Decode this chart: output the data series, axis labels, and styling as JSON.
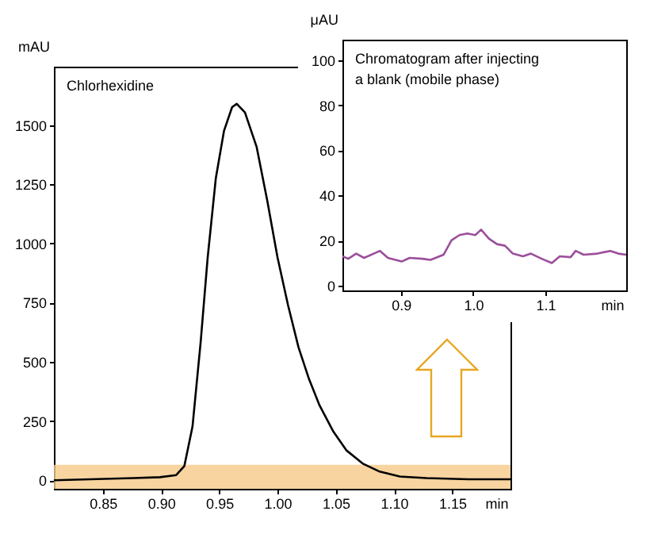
{
  "chart_data": [
    {
      "type": "line",
      "title": "Chlorhexidine",
      "xlabel": "min",
      "ylabel": "mAU",
      "xlim": [
        0.808,
        1.2
      ],
      "ylim": [
        -36,
        1747
      ],
      "xticks": [
        0.85,
        {
          "value": 0.9,
          "label": "0.90"
        },
        0.95,
        {
          "value": 1,
          "label": "1.00"
        },
        1.05,
        {
          "value": 1.1,
          "label": "1.10"
        },
        1.15
      ],
      "yticks": [
        0,
        250,
        500,
        750,
        1000,
        1250,
        1500
      ],
      "bands": [
        {
          "axis": "y",
          "from": -36,
          "to": 65,
          "color": "#f6c98a"
        }
      ],
      "series": [
        {
          "color": "#000000",
          "x": [
            0.808,
            0.876,
            0.899,
            0.913,
            0.92,
            0.927,
            0.934,
            0.94,
            0.947,
            0.954,
            0.961,
            0.965,
            0.972,
            0.982,
            0.991,
            1.0,
            1.009,
            1.018,
            1.027,
            1.036,
            1.048,
            1.059,
            1.073,
            1.087,
            1.105,
            1.128,
            1.164,
            1.2
          ],
          "values": [
            0,
            9,
            13,
            22,
            60,
            227,
            584,
            940,
            1275,
            1475,
            1576,
            1590,
            1554,
            1409,
            1186,
            941,
            740,
            562,
            428,
            317,
            205,
            127,
            71,
            38,
            16,
            9,
            4,
            4
          ]
        }
      ]
    },
    {
      "type": "line",
      "title": "Chromatogram after injecting a blank (mobile phase)",
      "xlabel": "min",
      "ylabel": "μAU",
      "xlim": [
        0.819,
        1.212
      ],
      "ylim": [
        -2,
        109
      ],
      "xticks": [
        0.9,
        {
          "value": 1,
          "label": "1.0"
        },
        1.1
      ],
      "yticks": [
        0,
        20,
        40,
        60,
        80,
        100
      ],
      "series": [
        {
          "color": "#9b4f9b",
          "x": [
            0.819,
            0.827,
            0.838,
            0.849,
            0.871,
            0.882,
            0.901,
            0.912,
            0.93,
            0.941,
            0.959,
            0.97,
            0.981,
            0.992,
            1.003,
            1.011,
            1.022,
            1.033,
            1.044,
            1.055,
            1.069,
            1.08,
            1.095,
            1.109,
            1.12,
            1.135,
            1.142,
            1.153,
            1.172,
            1.19,
            1.201,
            1.212
          ],
          "values": [
            13.1,
            12,
            14.3,
            12.4,
            15.5,
            12.4,
            10.8,
            12.4,
            12,
            11.5,
            13.8,
            20.2,
            22.5,
            23.2,
            22.5,
            24.9,
            20.9,
            18.5,
            17.8,
            14.3,
            13.1,
            14.3,
            12,
            10.1,
            13.1,
            12.7,
            15.5,
            13.8,
            14.3,
            15.5,
            14.3,
            13.8
          ]
        }
      ]
    }
  ]
}
